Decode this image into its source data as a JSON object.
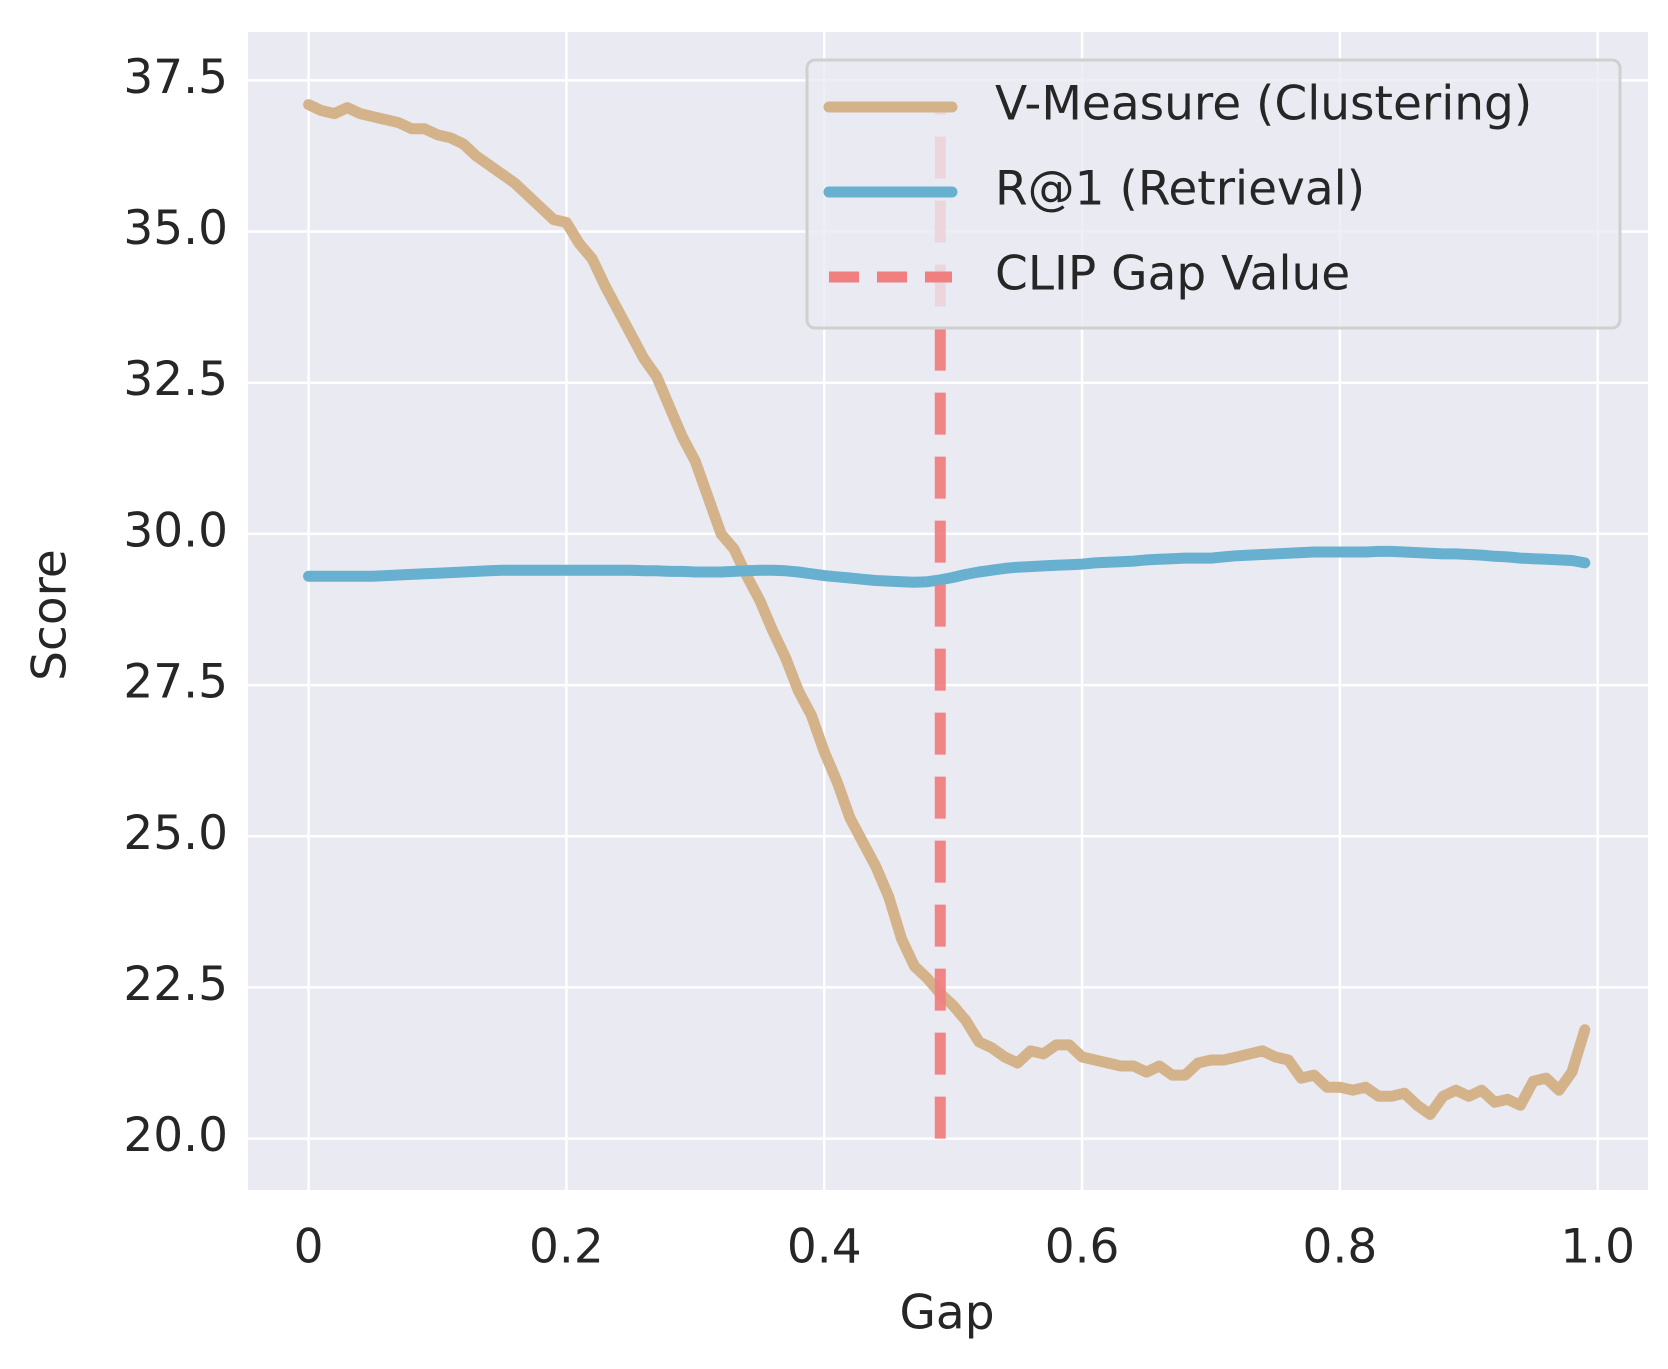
{
  "chart_data": {
    "type": "line",
    "xlabel": "Gap",
    "ylabel": "Score",
    "x": [
      0,
      0.01,
      0.02,
      0.03,
      0.04,
      0.05,
      0.06,
      0.07,
      0.08,
      0.09,
      0.1,
      0.11,
      0.12,
      0.13,
      0.14,
      0.15,
      0.16,
      0.17,
      0.18,
      0.19,
      0.2,
      0.21,
      0.22,
      0.23,
      0.24,
      0.25,
      0.26,
      0.27,
      0.28,
      0.29,
      0.3,
      0.31,
      0.32,
      0.33,
      0.34,
      0.35,
      0.36,
      0.37,
      0.38,
      0.39,
      0.4,
      0.41,
      0.42,
      0.43,
      0.44,
      0.45,
      0.46,
      0.47,
      0.48,
      0.49,
      0.5,
      0.51,
      0.52,
      0.53,
      0.54,
      0.55,
      0.56,
      0.57,
      0.58,
      0.59,
      0.6,
      0.61,
      0.62,
      0.63,
      0.64,
      0.65,
      0.66,
      0.67,
      0.68,
      0.69,
      0.7,
      0.71,
      0.72,
      0.73,
      0.74,
      0.75,
      0.76,
      0.77,
      0.78,
      0.79,
      0.8,
      0.81,
      0.82,
      0.83,
      0.84,
      0.85,
      0.86,
      0.87,
      0.88,
      0.89,
      0.9,
      0.91,
      0.92,
      0.93,
      0.94,
      0.95,
      0.96,
      0.97,
      0.98,
      0.99
    ],
    "series": [
      {
        "name": "V-Measure (Clustering)",
        "color": "#d4b38a",
        "values": [
          37.1,
          37.0,
          36.95,
          37.05,
          36.95,
          36.9,
          36.85,
          36.8,
          36.7,
          36.7,
          36.6,
          36.55,
          36.45,
          36.25,
          36.1,
          35.95,
          35.8,
          35.6,
          35.4,
          35.2,
          35.15,
          34.8,
          34.55,
          34.1,
          33.7,
          33.3,
          32.9,
          32.6,
          32.1,
          31.6,
          31.2,
          30.6,
          30.0,
          29.75,
          29.3,
          28.9,
          28.4,
          27.95,
          27.4,
          27.0,
          26.4,
          25.9,
          25.3,
          24.9,
          24.5,
          24.0,
          23.3,
          22.85,
          22.65,
          22.4,
          22.2,
          21.95,
          21.6,
          21.5,
          21.35,
          21.25,
          21.45,
          21.4,
          21.55,
          21.55,
          21.35,
          21.3,
          21.25,
          21.2,
          21.2,
          21.1,
          21.2,
          21.05,
          21.05,
          21.25,
          21.3,
          21.3,
          21.35,
          21.4,
          21.45,
          21.35,
          21.3,
          21.0,
          21.05,
          20.85,
          20.85,
          20.8,
          20.85,
          20.7,
          20.7,
          20.75,
          20.55,
          20.4,
          20.7,
          20.8,
          20.7,
          20.8,
          20.6,
          20.65,
          20.55,
          20.95,
          21.0,
          20.8,
          21.1,
          21.8
        ]
      },
      {
        "name": "R@1 (Retrieval)",
        "color": "#67b0cf",
        "values": [
          29.3,
          29.3,
          29.3,
          29.3,
          29.3,
          29.3,
          29.31,
          29.32,
          29.33,
          29.34,
          29.35,
          29.36,
          29.37,
          29.38,
          29.39,
          29.4,
          29.4,
          29.4,
          29.4,
          29.4,
          29.4,
          29.4,
          29.4,
          29.4,
          29.4,
          29.4,
          29.39,
          29.39,
          29.38,
          29.38,
          29.37,
          29.37,
          29.37,
          29.38,
          29.39,
          29.4,
          29.4,
          29.39,
          29.37,
          29.34,
          29.31,
          29.29,
          29.27,
          29.25,
          29.23,
          29.22,
          29.21,
          29.2,
          29.21,
          29.24,
          29.28,
          29.33,
          29.37,
          29.4,
          29.43,
          29.45,
          29.46,
          29.47,
          29.48,
          29.49,
          29.5,
          29.52,
          29.53,
          29.54,
          29.55,
          29.57,
          29.58,
          29.59,
          29.6,
          29.6,
          29.6,
          29.62,
          29.64,
          29.65,
          29.66,
          29.67,
          29.68,
          29.69,
          29.7,
          29.7,
          29.7,
          29.7,
          29.7,
          29.71,
          29.71,
          29.7,
          29.69,
          29.68,
          29.67,
          29.67,
          29.66,
          29.65,
          29.63,
          29.62,
          29.6,
          29.59,
          29.58,
          29.57,
          29.56,
          29.52
        ]
      }
    ],
    "vline": {
      "name": "CLIP Gap Value",
      "x": 0.49,
      "ymin": 20,
      "ymax": 37.1,
      "color": "#f08080"
    },
    "xlim": [
      -0.047,
      1.039
    ],
    "ylim": [
      19.15,
      38.3
    ],
    "xticks": [
      0,
      0.2,
      0.4,
      0.6,
      0.8,
      {
        "value": 1,
        "label": "1.0"
      }
    ],
    "yticks": [
      {
        "value": 20,
        "label": "20.0"
      },
      22.5,
      {
        "value": 25,
        "label": "25.0"
      },
      27.5,
      {
        "value": 30,
        "label": "30.0"
      },
      32.5,
      {
        "value": 35,
        "label": "35.0"
      },
      37.5
    ],
    "grid": true,
    "legend": "upper right"
  }
}
